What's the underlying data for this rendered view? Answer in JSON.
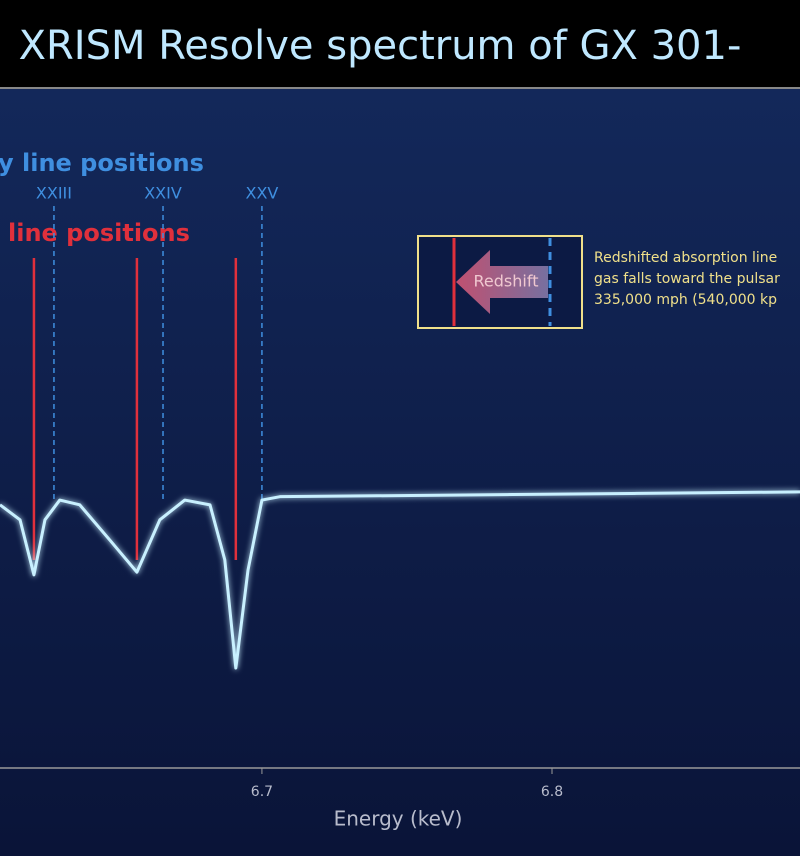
{
  "chart_data": {
    "type": "line",
    "title": "XRISM Resolve spectrum of GX 301-",
    "x_label": "Energy (keV)",
    "xlim": [
      6.6097,
      6.8855
    ],
    "xticks": [
      6.7,
      6.8
    ],
    "ylim": [
      0,
      1
    ],
    "color": "#c8f0ff",
    "x": [
      6.6097,
      6.6166,
      6.6214,
      6.6252,
      6.6303,
      6.6372,
      6.6476,
      6.6569,
      6.6648,
      6.6734,
      6.6821,
      6.6872,
      6.691,
      6.6952,
      6.7,
      6.7062,
      6.8855
    ],
    "values": [
      0.387,
      0.365,
      0.284,
      0.365,
      0.394,
      0.387,
      0.335,
      0.288,
      0.365,
      0.394,
      0.387,
      0.306,
      0.147,
      0.291,
      0.394,
      0.399,
      0.406
    ],
    "lab_label": "y line positions",
    "lab_color": "#3f8fe0",
    "lab_positions": [
      6.6283,
      6.6659,
      6.7
    ],
    "lab_names": [
      "XXIII",
      "XXIV",
      "XXV"
    ],
    "observed_label": "line positions",
    "observed_color": "#e0303c",
    "observed_positions": [
      6.6214,
      6.6569,
      6.691
    ],
    "inset_label": "Redshift",
    "annotation": [
      "Redshifted absorption line",
      "gas falls toward the pulsar",
      "335,000 mph (540,000 kp"
    ]
  }
}
